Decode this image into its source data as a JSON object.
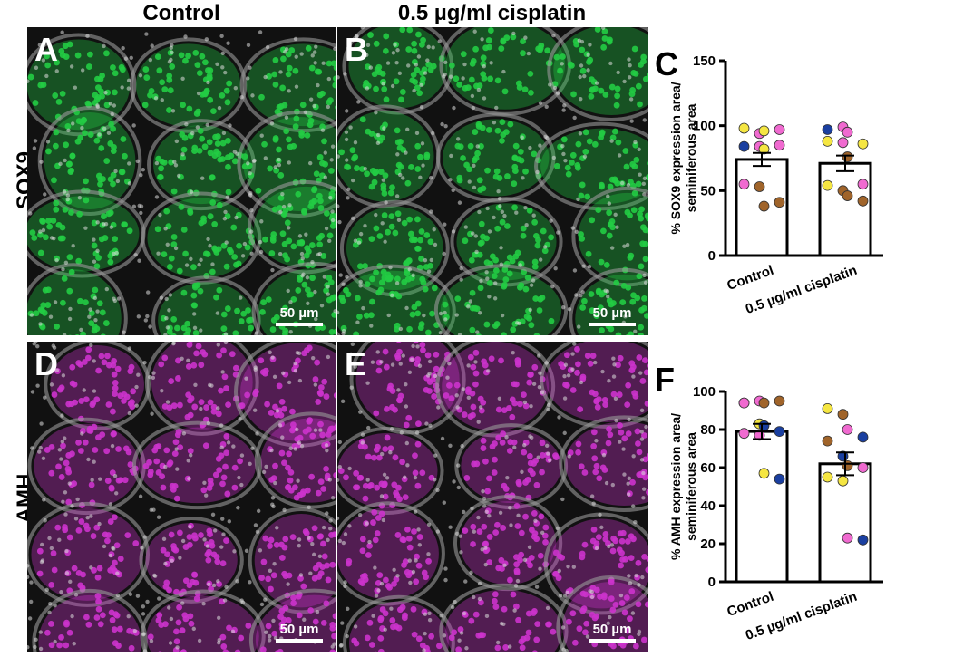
{
  "columns": {
    "control": "Control",
    "cisplatin": "0.5 µg/ml cisplatin"
  },
  "rows": {
    "sox9": "SOX9",
    "amh": "AMH"
  },
  "panels": {
    "A": {
      "letter": "A",
      "scale": "50 µm"
    },
    "B": {
      "letter": "B",
      "scale": "50 µm"
    },
    "D": {
      "letter": "D",
      "scale": "50 µm"
    },
    "E": {
      "letter": "E",
      "scale": "50 µm"
    }
  },
  "colors": {
    "sox9_stain": "#22cc44",
    "amh_stain": "#cc33cc",
    "nuclei": "#dddddd"
  },
  "chart_data": [
    {
      "panel": "C",
      "type": "bar",
      "categories": [
        "Control",
        "0.5 µg/ml cisplatin"
      ],
      "values": [
        74,
        71
      ],
      "sem": [
        5,
        6
      ],
      "ylabel": [
        "% SOX9 expression area/",
        "seminiferous area"
      ],
      "ylim": [
        0,
        150
      ],
      "yticks": [
        0,
        50,
        100,
        150
      ],
      "points": [
        [
          {
            "y": 98,
            "color": "#f5e642"
          },
          {
            "y": 94,
            "color": "#f06ad0"
          },
          {
            "y": 96,
            "color": "#f5e642"
          },
          {
            "y": 97,
            "color": "#f06ad0"
          },
          {
            "y": 84,
            "color": "#1a3fa0"
          },
          {
            "y": 84,
            "color": "#f06ad0"
          },
          {
            "y": 82,
            "color": "#f5e642"
          },
          {
            "y": 85,
            "color": "#f06ad0"
          },
          {
            "y": 55,
            "color": "#f06ad0"
          },
          {
            "y": 53,
            "color": "#a0642a"
          },
          {
            "y": 38,
            "color": "#a0642a"
          },
          {
            "y": 41,
            "color": "#a0642a"
          }
        ],
        [
          {
            "y": 97,
            "color": "#1a3fa0"
          },
          {
            "y": 99,
            "color": "#f06ad0"
          },
          {
            "y": 95,
            "color": "#f06ad0"
          },
          {
            "y": 86,
            "color": "#f5e642"
          },
          {
            "y": 88,
            "color": "#f5e642"
          },
          {
            "y": 87,
            "color": "#f06ad0"
          },
          {
            "y": 76,
            "color": "#a0642a"
          },
          {
            "y": 55,
            "color": "#f06ad0"
          },
          {
            "y": 54,
            "color": "#f5e642"
          },
          {
            "y": 50,
            "color": "#a0642a"
          },
          {
            "y": 46,
            "color": "#a0642a"
          },
          {
            "y": 42,
            "color": "#a0642a"
          }
        ]
      ]
    },
    {
      "panel": "F",
      "type": "bar",
      "categories": [
        "Control",
        "0.5 µg/ml cisplatin"
      ],
      "values": [
        79,
        62
      ],
      "sem": [
        4,
        6
      ],
      "ylabel": [
        "% AMH expression area/",
        "seminiferous area"
      ],
      "ylim": [
        0,
        100
      ],
      "yticks": [
        0,
        20,
        40,
        60,
        80,
        100
      ],
      "points": [
        [
          {
            "y": 94,
            "color": "#f06ad0"
          },
          {
            "y": 95,
            "color": "#f06ad0"
          },
          {
            "y": 94,
            "color": "#a0642a"
          },
          {
            "y": 95,
            "color": "#a0642a"
          },
          {
            "y": 94,
            "color": "#f06ad0"
          },
          {
            "y": 83,
            "color": "#f5e642"
          },
          {
            "y": 82,
            "color": "#1a3fa0"
          },
          {
            "y": 79,
            "color": "#1a3fa0"
          },
          {
            "y": 78,
            "color": "#f06ad0"
          },
          {
            "y": 77,
            "color": "#f06ad0"
          },
          {
            "y": 57,
            "color": "#f5e642"
          },
          {
            "y": 54,
            "color": "#1a3fa0"
          }
        ],
        [
          {
            "y": 91,
            "color": "#f5e642"
          },
          {
            "y": 88,
            "color": "#a0642a"
          },
          {
            "y": 80,
            "color": "#f06ad0"
          },
          {
            "y": 76,
            "color": "#1a3fa0"
          },
          {
            "y": 74,
            "color": "#a0642a"
          },
          {
            "y": 66,
            "color": "#1a3fa0"
          },
          {
            "y": 61,
            "color": "#a0642a"
          },
          {
            "y": 60,
            "color": "#f06ad0"
          },
          {
            "y": 55,
            "color": "#f5e642"
          },
          {
            "y": 53,
            "color": "#f5e642"
          },
          {
            "y": 23,
            "color": "#f06ad0"
          },
          {
            "y": 22,
            "color": "#1a3fa0"
          }
        ]
      ]
    }
  ]
}
